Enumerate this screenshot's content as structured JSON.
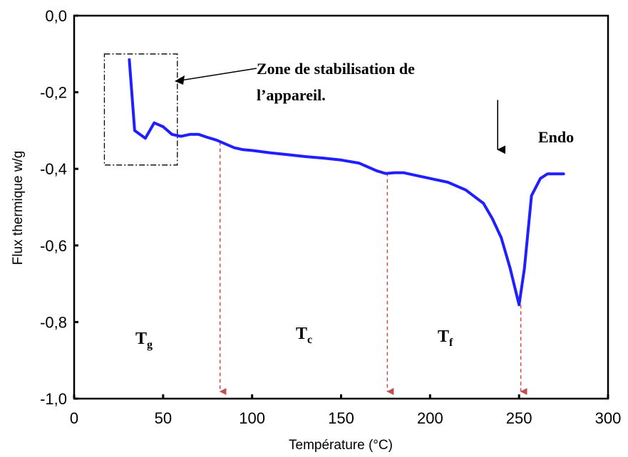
{
  "chart_data": {
    "type": "line",
    "title": "",
    "xlabel": "Température (°C)",
    "ylabel": "Flux thermique w/g",
    "xlim": [
      0,
      300
    ],
    "ylim": [
      -1.0,
      0.0
    ],
    "x_ticks": [
      0,
      50,
      100,
      150,
      200,
      250,
      300
    ],
    "x_tick_labels": [
      "0",
      "50",
      "100",
      "150",
      "200",
      "250",
      "300"
    ],
    "y_ticks": [
      0.0,
      -0.2,
      -0.4,
      -0.6,
      -0.8,
      -1.0
    ],
    "y_tick_labels": [
      "0,0",
      "-0,2",
      "-0,4",
      "-0,6",
      "-0,8",
      "-1,0"
    ],
    "grid": false,
    "series": [
      {
        "color": "#1f1fff",
        "x": [
          31,
          34,
          40,
          45,
          50,
          55,
          60,
          65,
          70,
          75,
          80,
          85,
          90,
          95,
          100,
          110,
          120,
          130,
          140,
          150,
          160,
          165,
          170,
          175,
          180,
          185,
          190,
          200,
          210,
          220,
          230,
          235,
          240,
          245,
          250,
          253,
          257,
          262,
          266,
          270,
          275
        ],
        "y": [
          -0.115,
          -0.3,
          -0.32,
          -0.28,
          -0.29,
          -0.31,
          -0.315,
          -0.31,
          -0.31,
          -0.318,
          -0.325,
          -0.335,
          -0.345,
          -0.35,
          -0.352,
          -0.358,
          -0.363,
          -0.368,
          -0.372,
          -0.377,
          -0.385,
          -0.395,
          -0.405,
          -0.412,
          -0.41,
          -0.41,
          -0.415,
          -0.425,
          -0.435,
          -0.455,
          -0.49,
          -0.53,
          -0.58,
          -0.66,
          -0.755,
          -0.66,
          -0.47,
          -0.425,
          -0.413,
          -0.413,
          -0.413
        ]
      }
    ],
    "markers": [
      {
        "x": 82,
        "y_from": -0.33,
        "color": "#c0504d"
      },
      {
        "x": 176,
        "y_from": -0.41,
        "color": "#c0504d"
      },
      {
        "x": 251,
        "y_from": -0.755,
        "color": "#c0504d"
      }
    ],
    "stabilization_box": {
      "x0": 17,
      "x1": 58,
      "y0": -0.1,
      "y1": -0.39
    },
    "endo_arrow": {
      "x": 238,
      "y_from": -0.22,
      "y_to": -0.35
    },
    "annotations": {
      "zone_line1": "Zone de stabilisation de",
      "zone_line2": "l’appareil.",
      "endo": "Endo",
      "tg_main": "T",
      "tg_sub": "g",
      "tc_main": "T",
      "tc_sub": "c",
      "tf_main": "T",
      "tf_sub": "f"
    }
  }
}
